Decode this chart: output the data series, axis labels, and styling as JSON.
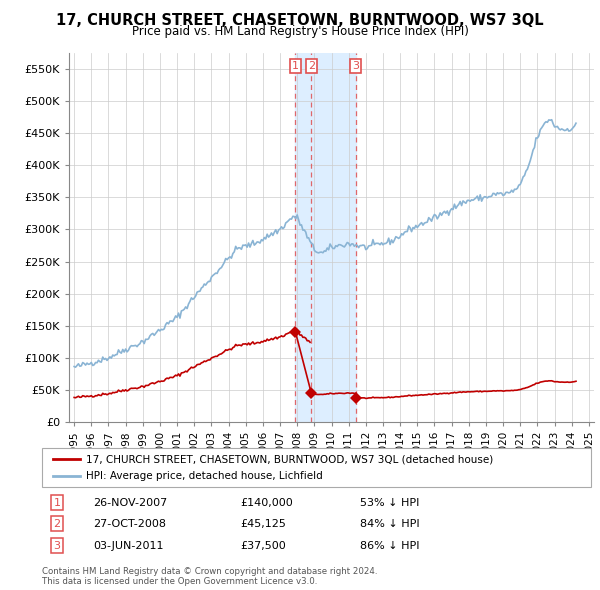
{
  "title": "17, CHURCH STREET, CHASETOWN, BURNTWOOD, WS7 3QL",
  "subtitle": "Price paid vs. HM Land Registry's House Price Index (HPI)",
  "legend_property": "17, CHURCH STREET, CHASETOWN, BURNTWOOD, WS7 3QL (detached house)",
  "legend_hpi": "HPI: Average price, detached house, Lichfield",
  "ylabel_ticks": [
    "£0",
    "£50K",
    "£100K",
    "£150K",
    "£200K",
    "£250K",
    "£300K",
    "£350K",
    "£400K",
    "£450K",
    "£500K",
    "£550K"
  ],
  "ylabel_values": [
    0,
    50000,
    100000,
    150000,
    200000,
    250000,
    300000,
    350000,
    400000,
    450000,
    500000,
    550000
  ],
  "ylim": [
    0,
    575000
  ],
  "xlim_start": 1994.7,
  "xlim_end": 2025.3,
  "hpi_color": "#8ab4d4",
  "property_color": "#c00000",
  "dashed_color": "#e05050",
  "shade_color": "#ddeeff",
  "background_color": "#ffffff",
  "grid_color": "#cccccc",
  "sale_dates": [
    2007.9,
    2008.82,
    2011.42
  ],
  "sale_prices": [
    140000,
    45125,
    37500
  ],
  "sale_labels": [
    "1",
    "2",
    "3"
  ],
  "sale_table": [
    {
      "num": "1",
      "date": "26-NOV-2007",
      "price": "£140,000",
      "pct": "53% ↓ HPI"
    },
    {
      "num": "2",
      "date": "27-OCT-2008",
      "price": "£45,125",
      "pct": "84% ↓ HPI"
    },
    {
      "num": "3",
      "date": "03-JUN-2011",
      "price": "£37,500",
      "pct": "86% ↓ HPI"
    }
  ],
  "footnote1": "Contains HM Land Registry data © Crown copyright and database right 2024.",
  "footnote2": "This data is licensed under the Open Government Licence v3.0."
}
